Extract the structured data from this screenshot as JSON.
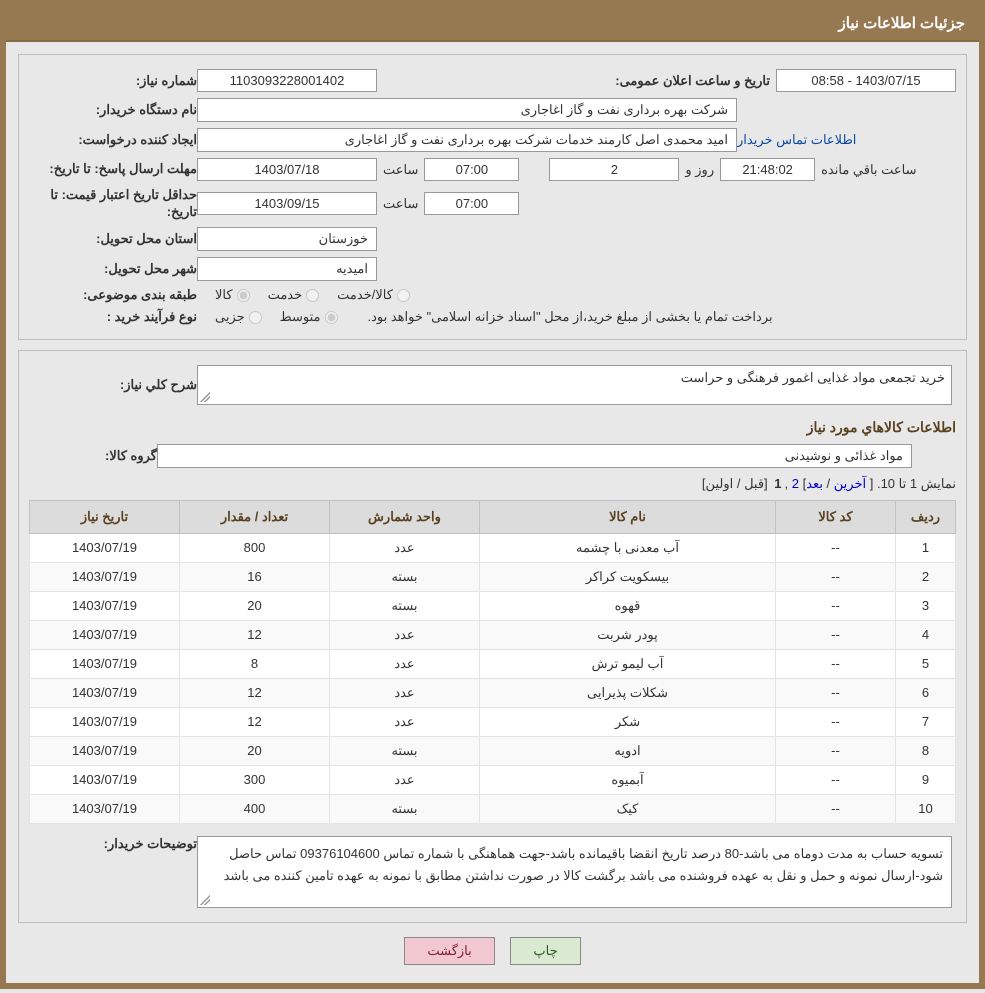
{
  "header": {
    "title": "جزئیات اطلاعات نیاز"
  },
  "fields": {
    "need_no_lbl": "شماره نیاز:",
    "need_no": "1103093228001402",
    "announce_lbl": "تاریخ و ساعت اعلان عمومی:",
    "announce_val": "1403/07/15 - 08:58",
    "buyer_org_lbl": "نام دستگاه خریدار:",
    "buyer_org": "شرکت بهره برداری نفت و گاز اغاجاری",
    "creator_lbl": "ایجاد کننده درخواست:",
    "creator": "امید محمدی اصل کارمند خدمات شرکت بهره برداری نفت و گاز اغاجاری",
    "buyer_contact_link": "اطلاعات تماس خریدار",
    "deadline_lbl": "مهلت ارسال پاسخ: تا تاریخ:",
    "deadline_date": "1403/07/18",
    "time_lbl": "ساعت",
    "deadline_time": "07:00",
    "days_lbl_suffix": "روز و",
    "days_val": "2",
    "countdown": "21:48:02",
    "remain_lbl": "ساعت باقي مانده",
    "min_valid_lbl": "حداقل تاریخ اعتبار قیمت: تا تاریخ:",
    "min_valid_date": "1403/09/15",
    "min_valid_time": "07:00",
    "province_lbl": "استان محل تحویل:",
    "province": "خوزستان",
    "city_lbl": "شهر محل تحویل:",
    "city": "امیدیه",
    "category_lbl": "طبقه بندی موضوعی:",
    "cat_opt_goods": "کالا",
    "cat_opt_service": "خدمت",
    "cat_opt_goods_service": "کالا/خدمت",
    "process_lbl": "نوع فرآیند خرید :",
    "process_opt_partial": "جزیی",
    "process_opt_medium": "متوسط",
    "process_note": "برداخت تمام یا بخشی از مبلغ خرید،از محل \"اسناد خزانه اسلامی\" خواهد بود.",
    "desc_lbl": "شرح کلي نياز:",
    "desc_text": "خرید تجمعی مواد غذایی اغمور فرهنگی و حراست",
    "items_heading": "اطلاعات كالاهاي مورد نياز",
    "group_lbl": "گروه کالا:",
    "group_val": "مواد غذائی و نوشیدنی",
    "pager_prefix": "نمایش 1 تا 10. [ ",
    "pager_last": "آخرین",
    "pager_sep1": " / ",
    "pager_next": "بعد",
    "pager_mid": "] ",
    "pager_p2": "2",
    "pager_comma": " ,",
    "pager_p1": "1",
    "pager_sep2": " [",
    "pager_prev": "قبل",
    "pager_sep3": " / ",
    "pager_first": "اولین",
    "pager_end": "]",
    "buyer_note_lbl": "توضیحات خریدار:",
    "buyer_note": "تسویه حساب به مدت دوماه می باشد-80 درصد تاریخ انقضا باقیمانده باشد-جهت هماهنگی با شماره تماس 09376104600 تماس حاصل شود-ارسال نمونه و حمل و نقل به عهده فروشنده می باشد برگشت کالا در صورت نداشتن مطابق با نمونه به عهده تامین کننده می باشد"
  },
  "table": {
    "columns": [
      "ردیف",
      "کد کالا",
      "نام کالا",
      "واحد شمارش",
      "تعداد / مقدار",
      "تاریخ نیاز"
    ],
    "rows": [
      [
        "1",
        "--",
        "آب معدنی با چشمه",
        "عدد",
        "800",
        "1403/07/19"
      ],
      [
        "2",
        "--",
        "بیسکویت کراکر",
        "بسته",
        "16",
        "1403/07/19"
      ],
      [
        "3",
        "--",
        "قهوه",
        "بسته",
        "20",
        "1403/07/19"
      ],
      [
        "4",
        "--",
        "پودر شربت",
        "عدد",
        "12",
        "1403/07/19"
      ],
      [
        "5",
        "--",
        "آب لیمو ترش",
        "عدد",
        "8",
        "1403/07/19"
      ],
      [
        "6",
        "--",
        "شکلات پذیرایی",
        "عدد",
        "12",
        "1403/07/19"
      ],
      [
        "7",
        "--",
        "شکر",
        "عدد",
        "12",
        "1403/07/19"
      ],
      [
        "8",
        "--",
        "ادویه",
        "بسته",
        "20",
        "1403/07/19"
      ],
      [
        "9",
        "--",
        "آبمیوه",
        "عدد",
        "300",
        "1403/07/19"
      ],
      [
        "10",
        "--",
        "کیک",
        "بسته",
        "400",
        "1403/07/19"
      ]
    ]
  },
  "buttons": {
    "print": "چاپ",
    "back": "بازگشت"
  }
}
